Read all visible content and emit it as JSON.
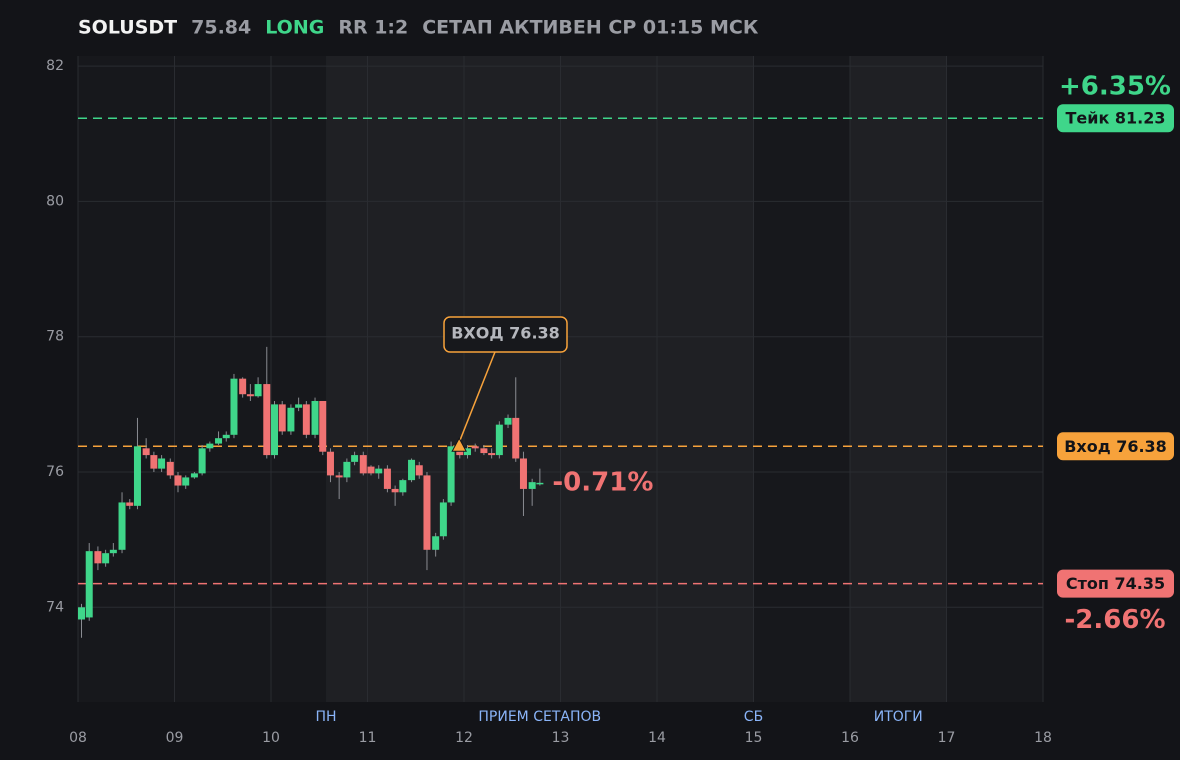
{
  "header": {
    "symbol": "SOLUSDT",
    "price": 75.84,
    "side": "LONG",
    "rr": "RR 1:2",
    "status": "СЕТАП АКТИВЕН СР 01:15 МСК"
  },
  "chart_data": {
    "type": "candlestick",
    "xlim": [
      8,
      18
    ],
    "xticks": [
      {
        "value": 8,
        "label": "08"
      },
      {
        "value": 9,
        "label": "09"
      },
      {
        "value": 10,
        "label": "10"
      },
      {
        "value": 11,
        "label": "11"
      },
      {
        "value": 12,
        "label": "12"
      },
      {
        "value": 13,
        "label": "13"
      },
      {
        "value": 14,
        "label": "14"
      },
      {
        "value": 15,
        "label": "15"
      },
      {
        "value": 16,
        "label": "16"
      },
      {
        "value": 17,
        "label": "17"
      },
      {
        "value": 18,
        "label": "18"
      }
    ],
    "ylim": [
      72.6,
      82.15
    ],
    "yticks": [
      74,
      76,
      78,
      80,
      82
    ],
    "grid": true,
    "up_color": "#3fd68a",
    "down_color": "#f07373",
    "x": [
      8,
      8.08,
      8.17,
      8.25,
      8.33,
      8.42,
      8.5,
      8.58,
      8.67,
      8.75,
      8.83,
      8.92,
      9,
      9.08,
      9.17,
      9.25,
      9.33,
      9.42,
      9.5,
      9.58,
      9.67,
      9.75,
      9.83,
      9.92,
      10,
      10.08,
      10.17,
      10.25,
      10.33,
      10.42,
      10.5,
      10.58,
      10.67,
      10.75,
      10.83,
      10.92,
      11,
      11.08,
      11.17,
      11.25,
      11.33,
      11.42,
      11.5,
      11.58,
      11.67,
      11.75,
      11.83,
      11.92,
      12,
      12.08,
      12.17,
      12.25,
      12.33,
      12.42,
      12.5,
      12.58,
      12.67,
      12.75
    ],
    "open": [
      73.82,
      73.85,
      74.83,
      74.65,
      74.8,
      74.85,
      75.55,
      75.5,
      76.35,
      76.25,
      76.05,
      76.15,
      75.95,
      75.8,
      75.92,
      75.98,
      76.35,
      76.42,
      76.5,
      76.55,
      77.38,
      77.15,
      77.12,
      77.3,
      76.25,
      77.0,
      76.6,
      76.95,
      77.0,
      76.55,
      77.05,
      76.3,
      75.95,
      75.92,
      76.15,
      76.25,
      76.08,
      75.98,
      76.05,
      75.75,
      75.7,
      75.88,
      76.1,
      75.95,
      74.85,
      75.05,
      75.55,
      76.38,
      76.25,
      76.38,
      76.35,
      76.28,
      76.25,
      76.7,
      76.8,
      76.2,
      75.75,
      75.84
    ],
    "high": [
      74.05,
      74.95,
      74.9,
      74.85,
      74.95,
      75.7,
      75.6,
      76.8,
      76.5,
      76.3,
      76.25,
      76.2,
      76.0,
      75.95,
      76.0,
      76.4,
      76.45,
      76.6,
      76.6,
      77.45,
      77.4,
      77.3,
      77.4,
      77.85,
      77.05,
      77.05,
      77.0,
      77.1,
      77.05,
      77.1,
      77.05,
      76.35,
      76.0,
      76.2,
      76.3,
      76.3,
      76.1,
      76.1,
      76.1,
      75.8,
      75.9,
      76.2,
      76.15,
      76.0,
      75.1,
      75.6,
      76.45,
      76.45,
      76.4,
      76.42,
      76.4,
      76.35,
      76.75,
      76.85,
      77.4,
      76.3,
      75.9,
      76.05
    ],
    "low": [
      73.55,
      73.8,
      74.55,
      74.6,
      74.75,
      74.8,
      75.45,
      75.45,
      76.2,
      76.0,
      76.0,
      75.9,
      75.7,
      75.75,
      75.9,
      75.95,
      76.3,
      76.4,
      76.45,
      76.5,
      77.1,
      77.05,
      77.1,
      76.2,
      76.2,
      76.55,
      76.55,
      76.9,
      76.5,
      76.5,
      76.25,
      75.85,
      75.6,
      75.85,
      76.1,
      75.95,
      75.95,
      75.9,
      75.7,
      75.5,
      75.65,
      75.85,
      75.9,
      74.55,
      74.75,
      75.0,
      75.5,
      76.2,
      76.2,
      76.3,
      76.25,
      76.2,
      76.2,
      76.65,
      76.15,
      75.35,
      75.5,
      75.8
    ],
    "close": [
      74.0,
      74.83,
      74.65,
      74.8,
      74.85,
      75.55,
      75.5,
      76.38,
      76.25,
      76.05,
      76.2,
      75.95,
      75.8,
      75.92,
      75.98,
      76.35,
      76.42,
      76.5,
      76.55,
      77.38,
      77.15,
      77.12,
      77.3,
      76.25,
      77.0,
      76.6,
      76.95,
      77.0,
      76.55,
      77.05,
      76.3,
      75.95,
      75.92,
      76.15,
      76.25,
      75.98,
      75.98,
      76.05,
      75.75,
      75.7,
      75.88,
      76.18,
      75.95,
      74.85,
      75.05,
      75.55,
      76.38,
      76.25,
      76.35,
      76.35,
      76.28,
      76.25,
      76.7,
      76.8,
      76.2,
      75.75,
      75.85,
      75.84
    ],
    "regions": [
      {
        "label": "ПРИЕМ СЕТАПОВ",
        "start": 10.57,
        "end": 15
      },
      {
        "label": "ИТОГИ",
        "start": 16,
        "end": 17
      }
    ],
    "markers": [
      {
        "label": "ПН",
        "x": 10.57
      },
      {
        "label": "СБ",
        "x": 15
      }
    ],
    "levels": [
      {
        "label": "Тейк 81.23",
        "value": 81.23,
        "pct": "+6.35%",
        "color": "#3fd68a"
      },
      {
        "label": "Вход 76.38",
        "value": 76.38,
        "color": "#f7a23b"
      },
      {
        "label": "Стоп 74.35",
        "value": 74.35,
        "pct": "-2.66%",
        "color": "#f07373"
      }
    ],
    "entry": {
      "label": "ВХОД 76.38",
      "x": 11.95,
      "y": 76.38,
      "color": "#f7a23b"
    },
    "current_pct": "-0.71%"
  }
}
